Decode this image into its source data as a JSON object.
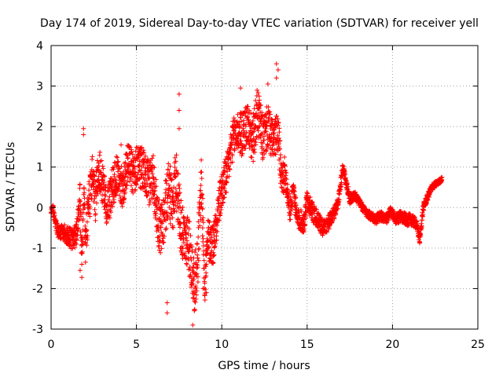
{
  "chart_data": {
    "type": "scatter",
    "title": "Day 174 of 2019, Sidereal Day-to-day VTEC variation (SDTVAR) for receiver yell",
    "xlabel": "GPS time / hours",
    "ylabel": "SDTVAR / TECUs",
    "xlim": [
      0,
      25
    ],
    "ylim": [
      -3,
      4
    ],
    "xticks": [
      0,
      5,
      10,
      15,
      20,
      25
    ],
    "yticks": [
      -3,
      -2,
      -1,
      0,
      1,
      2,
      3,
      4
    ],
    "xtick_labels": [
      "0",
      "5",
      "10",
      "15",
      "20",
      "25"
    ],
    "ytick_labels": [
      "-3",
      "-2",
      "-1",
      "0",
      "1",
      "2",
      "3",
      "4"
    ],
    "grid": true,
    "marker": "+",
    "color": "#ff0000",
    "series": [
      {
        "name": "SDTVAR",
        "trend": [
          [
            0.0,
            -0.1
          ],
          [
            0.1,
            0.0
          ],
          [
            0.2,
            -0.3
          ],
          [
            0.4,
            -0.6
          ],
          [
            0.7,
            -0.6
          ],
          [
            1.0,
            -0.7
          ],
          [
            1.3,
            -0.8
          ],
          [
            1.5,
            -0.6
          ],
          [
            1.7,
            0.2
          ],
          [
            1.8,
            -1.3
          ],
          [
            1.9,
            0.5
          ],
          [
            2.0,
            -0.9
          ],
          [
            2.2,
            0.0
          ],
          [
            2.4,
            0.8
          ],
          [
            2.6,
            0.2
          ],
          [
            2.8,
            1.0
          ],
          [
            3.0,
            0.6
          ],
          [
            3.3,
            0.0
          ],
          [
            3.6,
            0.5
          ],
          [
            3.9,
            0.9
          ],
          [
            4.2,
            0.4
          ],
          [
            4.5,
            1.2
          ],
          [
            4.8,
            0.8
          ],
          [
            5.1,
            1.1
          ],
          [
            5.4,
            0.9
          ],
          [
            5.7,
            0.6
          ],
          [
            6.0,
            0.8
          ],
          [
            6.2,
            -0.1
          ],
          [
            6.4,
            -0.6
          ],
          [
            6.6,
            -0.3
          ],
          [
            6.9,
            0.6
          ],
          [
            7.1,
            -0.1
          ],
          [
            7.3,
            0.8
          ],
          [
            7.6,
            -0.4
          ],
          [
            7.8,
            -0.9
          ],
          [
            8.0,
            -0.7
          ],
          [
            8.2,
            -1.3
          ],
          [
            8.4,
            -1.9
          ],
          [
            8.6,
            -1.2
          ],
          [
            8.8,
            0.7
          ],
          [
            9.0,
            -1.8
          ],
          [
            9.2,
            -0.8
          ],
          [
            9.5,
            -0.9
          ],
          [
            9.8,
            0.0
          ],
          [
            10.1,
            0.6
          ],
          [
            10.3,
            0.8
          ],
          [
            10.6,
            1.6
          ],
          [
            10.9,
            1.9
          ],
          [
            11.2,
            1.8
          ],
          [
            11.5,
            2.1
          ],
          [
            11.8,
            1.6
          ],
          [
            12.1,
            2.4
          ],
          [
            12.4,
            1.7
          ],
          [
            12.7,
            2.0
          ],
          [
            13.0,
            1.6
          ],
          [
            13.3,
            1.9
          ],
          [
            13.5,
            0.6
          ],
          [
            13.7,
            0.9
          ],
          [
            14.0,
            -0.1
          ],
          [
            14.2,
            0.5
          ],
          [
            14.4,
            -0.3
          ],
          [
            14.6,
            -0.3
          ],
          [
            14.8,
            -0.4
          ],
          [
            15.0,
            0.2
          ],
          [
            15.3,
            -0.1
          ],
          [
            15.6,
            -0.3
          ],
          [
            15.9,
            -0.5
          ],
          [
            16.2,
            -0.4
          ],
          [
            16.5,
            -0.2
          ],
          [
            16.8,
            0.1
          ],
          [
            17.1,
            1.0
          ],
          [
            17.3,
            0.6
          ],
          [
            17.5,
            0.2
          ],
          [
            17.8,
            0.3
          ],
          [
            18.1,
            0.1
          ],
          [
            18.4,
            -0.1
          ],
          [
            18.7,
            -0.2
          ],
          [
            19.0,
            -0.3
          ],
          [
            19.3,
            -0.2
          ],
          [
            19.6,
            -0.3
          ],
          [
            19.9,
            -0.1
          ],
          [
            20.2,
            -0.3
          ],
          [
            20.5,
            -0.2
          ],
          [
            20.8,
            -0.3
          ],
          [
            21.1,
            -0.3
          ],
          [
            21.4,
            -0.4
          ],
          [
            21.6,
            -0.8
          ],
          [
            21.8,
            0.0
          ],
          [
            22.0,
            0.2
          ],
          [
            22.3,
            0.5
          ],
          [
            22.6,
            0.6
          ],
          [
            22.9,
            0.7
          ]
        ],
        "scatter_band": [
          [
            0.0,
            0.1
          ],
          [
            1.5,
            0.3
          ],
          [
            2.0,
            0.6
          ],
          [
            3.0,
            0.5
          ],
          [
            5.0,
            0.5
          ],
          [
            6.0,
            0.6
          ],
          [
            7.0,
            0.7
          ],
          [
            8.5,
            0.7
          ],
          [
            9.5,
            0.5
          ],
          [
            10.5,
            0.5
          ],
          [
            12.0,
            0.6
          ],
          [
            13.3,
            0.5
          ],
          [
            14.0,
            0.3
          ],
          [
            16.0,
            0.2
          ],
          [
            18.0,
            0.1
          ],
          [
            21.0,
            0.15
          ],
          [
            23.0,
            0.05
          ]
        ],
        "outliers": [
          [
            7.5,
            2.8
          ],
          [
            7.5,
            2.4
          ],
          [
            7.5,
            1.95
          ],
          [
            8.3,
            -2.9
          ],
          [
            6.8,
            -2.6
          ],
          [
            6.8,
            -2.35
          ],
          [
            13.2,
            3.55
          ],
          [
            13.3,
            3.4
          ],
          [
            13.2,
            3.2
          ],
          [
            1.9,
            1.95
          ],
          [
            1.9,
            1.8
          ],
          [
            1.7,
            -1.55
          ],
          [
            1.8,
            -1.4
          ],
          [
            8.9,
            -2.0
          ],
          [
            9.1,
            -2.1
          ],
          [
            12.7,
            3.05
          ],
          [
            11.1,
            2.95
          ],
          [
            4.1,
            1.55
          ]
        ]
      }
    ]
  }
}
